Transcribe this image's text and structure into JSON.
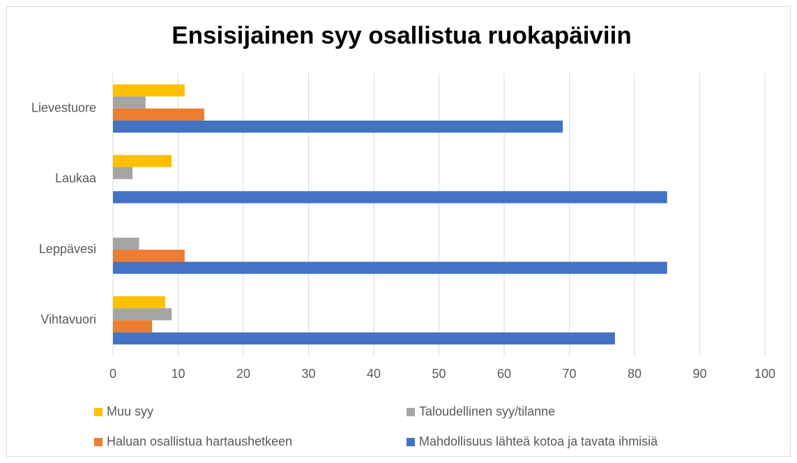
{
  "chart_data": {
    "type": "bar",
    "orientation": "horizontal",
    "title": "Ensisijainen syy osallistua ruokapäiviin",
    "categories": [
      "Vihtavuori",
      "Leppävesi",
      "Laukaa",
      "Lievestuore"
    ],
    "series": [
      {
        "name": "Muu syy",
        "color": "#ffc000",
        "values": [
          8,
          0,
          9,
          11
        ]
      },
      {
        "name": "Taloudellinen syy/tilanne",
        "color": "#a5a5a5",
        "values": [
          9,
          4,
          3,
          5
        ]
      },
      {
        "name": "Haluan osallistua hartaushetkeen",
        "color": "#ed7d31",
        "values": [
          6,
          11,
          0,
          14
        ]
      },
      {
        "name": "Mahdollisuus lähteä kotoa ja tavata ihmisiä",
        "color": "#4472c4",
        "values": [
          77,
          85,
          85,
          69
        ]
      }
    ],
    "xlim": [
      0,
      100
    ],
    "xticks": [
      0,
      10,
      20,
      30,
      40,
      50,
      60,
      70,
      80,
      90,
      100
    ],
    "grid": true,
    "legend": "bottom"
  }
}
